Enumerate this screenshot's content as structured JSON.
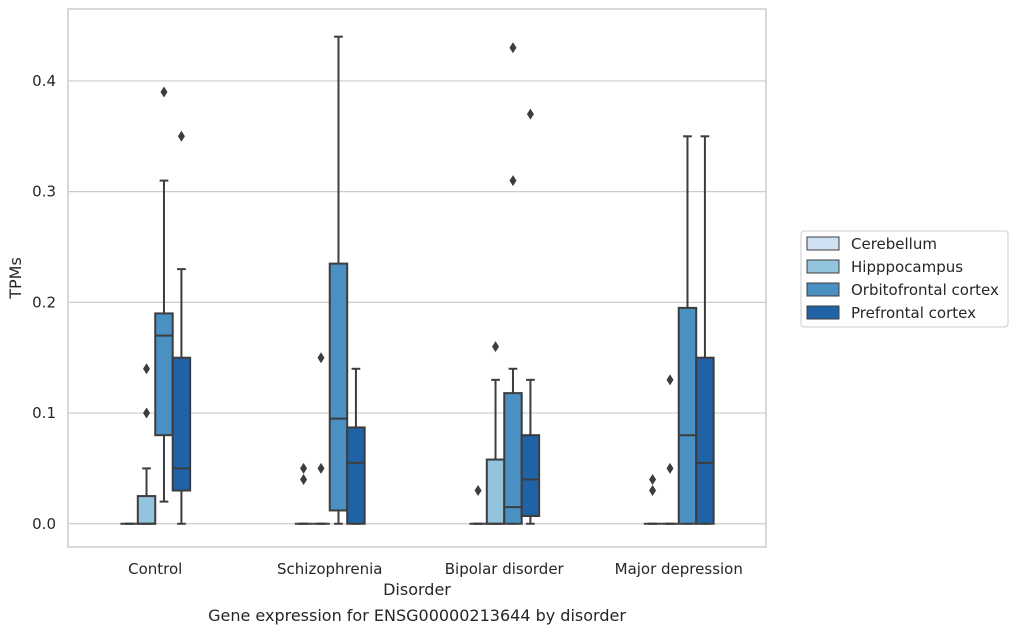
{
  "chart_data": {
    "type": "box",
    "title": "",
    "caption": "Gene expression for ENSG00000213644 by disorder",
    "xlabel": "Disorder",
    "ylabel": "TPMs",
    "ylim": [
      -0.021,
      0.465
    ],
    "yticks": [
      0.0,
      0.1,
      0.2,
      0.3,
      0.4
    ],
    "ytick_labels": [
      "0.0",
      "0.1",
      "0.2",
      "0.3",
      "0.4"
    ],
    "grid": "horizontal",
    "legend_position": "right",
    "categories": [
      "Control",
      "Schizophrenia",
      "Bipolar disorder",
      "Major depression"
    ],
    "series": [
      {
        "name": "Cerebellum",
        "color": "#cfe1f2",
        "boxes": [
          {
            "whislo": 0,
            "q1": 0,
            "med": 0,
            "q3": 0,
            "whishi": 0,
            "fliers": []
          },
          {
            "whislo": 0,
            "q1": 0,
            "med": 0,
            "q3": 0,
            "whishi": 0,
            "fliers": [
              0.04,
              0.05
            ]
          },
          {
            "whislo": 0,
            "q1": 0,
            "med": 0,
            "q3": 0,
            "whishi": 0,
            "fliers": [
              0.03
            ]
          },
          {
            "whislo": 0,
            "q1": 0,
            "med": 0,
            "q3": 0,
            "whishi": 0,
            "fliers": [
              0.03,
              0.04
            ]
          }
        ]
      },
      {
        "name": "Hipppocampus",
        "color": "#93c4de",
        "boxes": [
          {
            "whislo": 0,
            "q1": 0,
            "med": 0,
            "q3": 0.025,
            "whishi": 0.05,
            "fliers": [
              0.1,
              0.14
            ]
          },
          {
            "whislo": 0,
            "q1": 0,
            "med": 0,
            "q3": 0,
            "whishi": 0,
            "fliers": [
              0.05,
              0.15
            ]
          },
          {
            "whislo": 0,
            "q1": 0,
            "med": 0,
            "q3": 0.058,
            "whishi": 0.13,
            "fliers": [
              0.16
            ]
          },
          {
            "whislo": 0,
            "q1": 0,
            "med": 0,
            "q3": 0,
            "whishi": 0,
            "fliers": [
              0.05,
              0.13
            ]
          }
        ]
      },
      {
        "name": "Orbitofrontal cortex",
        "color": "#4a90c3",
        "boxes": [
          {
            "whislo": 0.02,
            "q1": 0.08,
            "med": 0.17,
            "q3": 0.19,
            "whishi": 0.31,
            "fliers": [
              0.39
            ]
          },
          {
            "whislo": 0,
            "q1": 0.012,
            "med": 0.095,
            "q3": 0.235,
            "whishi": 0.44,
            "fliers": []
          },
          {
            "whislo": 0,
            "q1": 0,
            "med": 0.015,
            "q3": 0.118,
            "whishi": 0.14,
            "fliers": [
              0.31,
              0.43
            ]
          },
          {
            "whislo": 0,
            "q1": 0,
            "med": 0.08,
            "q3": 0.195,
            "whishi": 0.35,
            "fliers": []
          }
        ]
      },
      {
        "name": "Prefrontal cortex",
        "color": "#1f62a6",
        "boxes": [
          {
            "whislo": 0,
            "q1": 0.03,
            "med": 0.05,
            "q3": 0.15,
            "whishi": 0.23,
            "fliers": [
              0.35
            ]
          },
          {
            "whislo": 0,
            "q1": 0,
            "med": 0.055,
            "q3": 0.087,
            "whishi": 0.14,
            "fliers": []
          },
          {
            "whislo": 0,
            "q1": 0.007,
            "med": 0.04,
            "q3": 0.08,
            "whishi": 0.13,
            "fliers": [
              0.37
            ]
          },
          {
            "whislo": 0,
            "q1": 0,
            "med": 0.055,
            "q3": 0.15,
            "whishi": 0.35,
            "fliers": []
          }
        ]
      }
    ]
  },
  "colors": {
    "grid": "#cccccc",
    "frame": "#cccccc",
    "line": "#3d3d3d"
  }
}
